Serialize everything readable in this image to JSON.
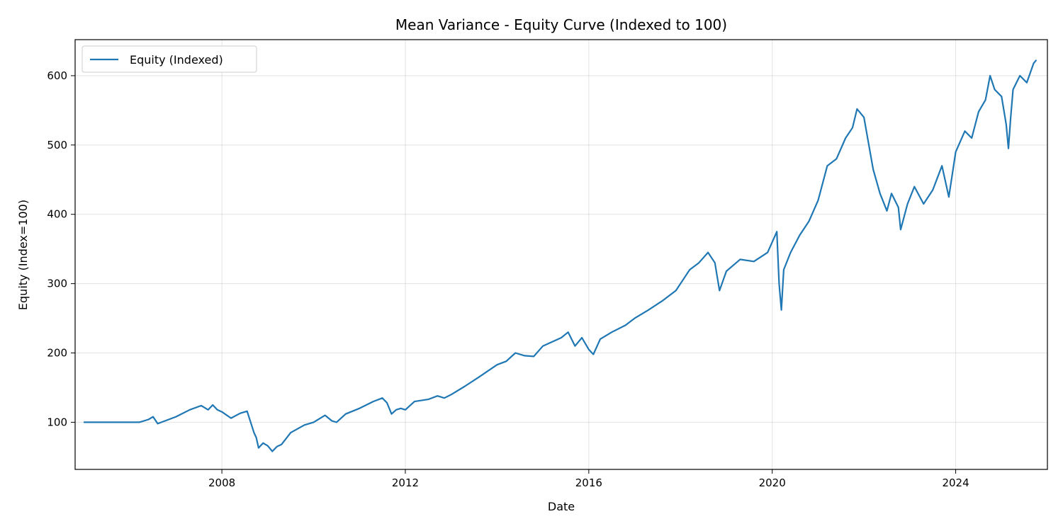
{
  "chart_data": {
    "type": "line",
    "title": "Mean Variance - Equity Curve (Indexed to 100)",
    "xlabel": "Date",
    "ylabel": "Equity (Index=100)",
    "xlim": [
      2004.8,
      2026.0
    ],
    "ylim": [
      32,
      652
    ],
    "x_ticks": [
      2008,
      2012,
      2016,
      2020,
      2024
    ],
    "y_ticks": [
      100,
      200,
      300,
      400,
      500,
      600
    ],
    "grid": true,
    "legend_position": "top-left",
    "color": "#1f77b4",
    "series": [
      {
        "name": "Equity (Indexed)",
        "x": [
          2005.0,
          2005.5,
          2006.0,
          2006.2,
          2006.4,
          2006.5,
          2006.6,
          2007.0,
          2007.3,
          2007.55,
          2007.7,
          2007.8,
          2007.9,
          2008.0,
          2008.2,
          2008.4,
          2008.55,
          2008.7,
          2008.75,
          2008.8,
          2008.9,
          2009.0,
          2009.1,
          2009.2,
          2009.3,
          2009.5,
          2009.8,
          2010.0,
          2010.25,
          2010.4,
          2010.5,
          2010.7,
          2011.0,
          2011.3,
          2011.5,
          2011.6,
          2011.7,
          2011.8,
          2011.9,
          2012.0,
          2012.2,
          2012.5,
          2012.7,
          2012.85,
          2013.0,
          2013.3,
          2013.6,
          2014.0,
          2014.2,
          2014.4,
          2014.6,
          2014.8,
          2015.0,
          2015.4,
          2015.55,
          2015.7,
          2015.85,
          2016.0,
          2016.1,
          2016.25,
          2016.5,
          2016.8,
          2017.0,
          2017.3,
          2017.6,
          2017.9,
          2018.05,
          2018.2,
          2018.4,
          2018.6,
          2018.75,
          2018.85,
          2019.0,
          2019.3,
          2019.6,
          2019.9,
          2020.1,
          2020.15,
          2020.2,
          2020.25,
          2020.4,
          2020.6,
          2020.8,
          2021.0,
          2021.2,
          2021.4,
          2021.6,
          2021.75,
          2021.85,
          2022.0,
          2022.2,
          2022.35,
          2022.5,
          2022.6,
          2022.75,
          2022.8,
          2022.95,
          2023.1,
          2023.3,
          2023.5,
          2023.7,
          2023.85,
          2024.0,
          2024.2,
          2024.35,
          2024.5,
          2024.65,
          2024.75,
          2024.85,
          2025.0,
          2025.1,
          2025.15,
          2025.2,
          2025.25,
          2025.4,
          2025.55,
          2025.7,
          2025.75
        ],
        "y": [
          100,
          100,
          100,
          100,
          104,
          108,
          98,
          108,
          118,
          124,
          118,
          125,
          118,
          115,
          106,
          113,
          116,
          85,
          78,
          63,
          70,
          66,
          58,
          65,
          68,
          85,
          96,
          100,
          110,
          102,
          100,
          112,
          120,
          130,
          135,
          128,
          112,
          118,
          120,
          118,
          130,
          133,
          138,
          135,
          140,
          152,
          165,
          183,
          188,
          200,
          196,
          195,
          210,
          222,
          230,
          210,
          222,
          205,
          198,
          220,
          230,
          240,
          250,
          262,
          275,
          290,
          305,
          320,
          330,
          345,
          330,
          290,
          318,
          335,
          332,
          345,
          375,
          300,
          262,
          320,
          345,
          370,
          390,
          420,
          470,
          480,
          510,
          525,
          552,
          540,
          465,
          430,
          405,
          430,
          410,
          378,
          415,
          440,
          415,
          435,
          470,
          425,
          490,
          520,
          510,
          548,
          565,
          600,
          580,
          570,
          530,
          495,
          540,
          580,
          600,
          590,
          618,
          622
        ]
      }
    ]
  }
}
